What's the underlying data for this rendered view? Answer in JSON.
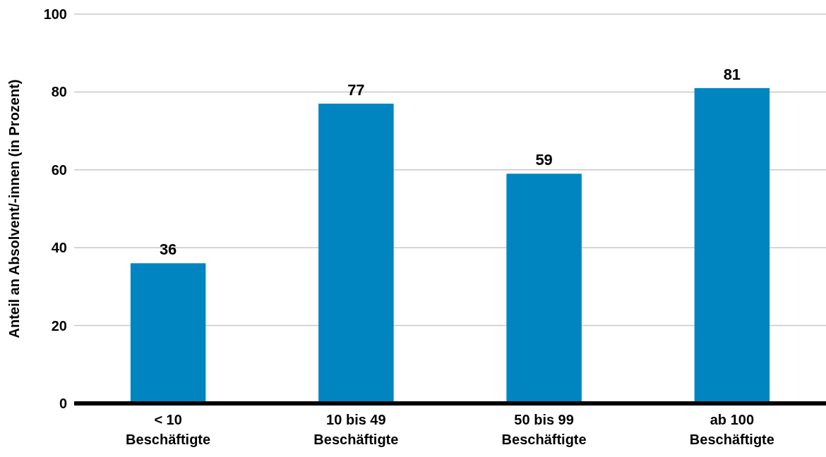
{
  "chart_data": {
    "type": "bar",
    "ylabel": "Anteil an Absolvent/-innen (in Prozent)",
    "categories": [
      "< 10\nBeschäftigte",
      "10 bis 49\nBeschäftigte",
      "50 bis 99\nBeschäftigte",
      "ab 100\nBeschäftigte"
    ],
    "values": [
      36,
      77,
      59,
      81
    ],
    "color": "#0085c0",
    "data_labels": true,
    "ylim": [
      0,
      100
    ],
    "yticks": [
      0,
      20,
      40,
      60,
      80,
      100
    ],
    "grid": "y"
  }
}
